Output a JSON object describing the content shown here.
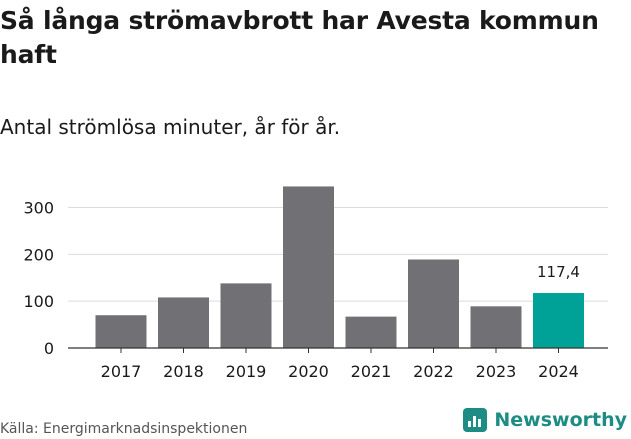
{
  "header": {
    "title": "Så långa strömavbrott har Avesta kommun haft",
    "subtitle": "Antal strömlösa minuter, år för år."
  },
  "footer": {
    "source": "Källa: Energimarknadsinspektionen",
    "brand": "Newsworthy",
    "brand_icon": "newsworthy-logo-icon"
  },
  "colors": {
    "bar": "#717074",
    "highlight": "#00a297",
    "grid": "#dcdcdc",
    "axis": "#333333",
    "brand": "#1d8c84"
  },
  "chart_data": {
    "type": "bar",
    "categories": [
      "2017",
      "2018",
      "2019",
      "2020",
      "2021",
      "2022",
      "2023",
      "2024"
    ],
    "values": [
      70,
      108,
      138,
      345,
      67,
      189,
      89,
      117.4
    ],
    "highlight_index": 7,
    "data_labels": {
      "2024": "117,4"
    },
    "yticks": [
      0,
      100,
      200,
      300
    ],
    "ylim": [
      0,
      350
    ],
    "grid": true,
    "legend": "none",
    "xlabel": "",
    "ylabel": ""
  }
}
